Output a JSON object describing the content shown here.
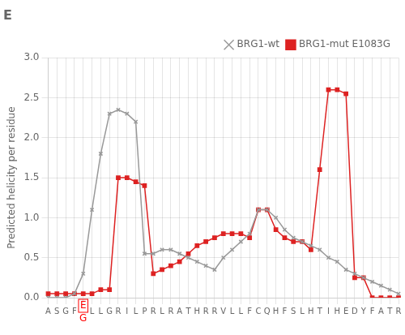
{
  "chart_data": {
    "type": "line",
    "title": "E",
    "ylabel": "Predicted helicity per residue",
    "categories": [
      "A",
      "S",
      "G",
      "F",
      null,
      "L",
      "L",
      "G",
      "R",
      "I",
      "L",
      "P",
      "R",
      "L",
      "R",
      "A",
      "T",
      "H",
      "R",
      "R",
      "V",
      "L",
      "L",
      "F",
      "C",
      "Q",
      "H",
      "F",
      "S",
      "L",
      "H",
      "T",
      "I",
      "H",
      "E",
      "D",
      "Y",
      "F",
      "A",
      "T",
      "R"
    ],
    "series": [
      {
        "name": "BRG1-wt",
        "color": "#999999",
        "marker": "x",
        "values": [
          0.0,
          0.0,
          0.0,
          0.05,
          0.3,
          1.1,
          1.8,
          2.3,
          2.35,
          2.3,
          2.2,
          0.55,
          0.55,
          0.6,
          0.6,
          0.55,
          0.5,
          0.45,
          0.4,
          0.35,
          0.5,
          0.6,
          0.7,
          0.8,
          1.1,
          1.1,
          1.0,
          0.85,
          0.75,
          0.7,
          0.65,
          0.6,
          0.5,
          0.45,
          0.35,
          0.3,
          0.25,
          0.2,
          0.15,
          0.1,
          0.05
        ]
      },
      {
        "name": "BRG1-mut E1083G",
        "color": "#dd2222",
        "marker": "square",
        "values": [
          0.05,
          0.05,
          0.05,
          0.05,
          0.05,
          0.05,
          0.1,
          0.1,
          1.5,
          1.5,
          1.45,
          1.4,
          0.3,
          0.35,
          0.4,
          0.45,
          0.55,
          0.65,
          0.7,
          0.75,
          0.8,
          0.8,
          0.8,
          0.75,
          1.1,
          1.1,
          0.85,
          0.75,
          0.7,
          0.7,
          0.6,
          1.6,
          2.6,
          2.6,
          2.55,
          0.25,
          0.25,
          0.0,
          0.0,
          0.0,
          0.0
        ]
      }
    ],
    "annotations": [
      {
        "text": "E",
        "x": 4,
        "color": "red"
      },
      {
        "text": "G",
        "x": 4,
        "color": "red"
      }
    ],
    "ylim": [
      0,
      3
    ],
    "yticks": [
      {
        "value": 0,
        "label": "0.0"
      },
      0.5,
      {
        "value": 1.0,
        "label": "1.0"
      },
      1.5,
      {
        "value": 2.0,
        "label": "2.0"
      },
      2.5,
      {
        "value": 3.0,
        "label": "3.0"
      }
    ],
    "grid": true,
    "legend": "upper right"
  }
}
